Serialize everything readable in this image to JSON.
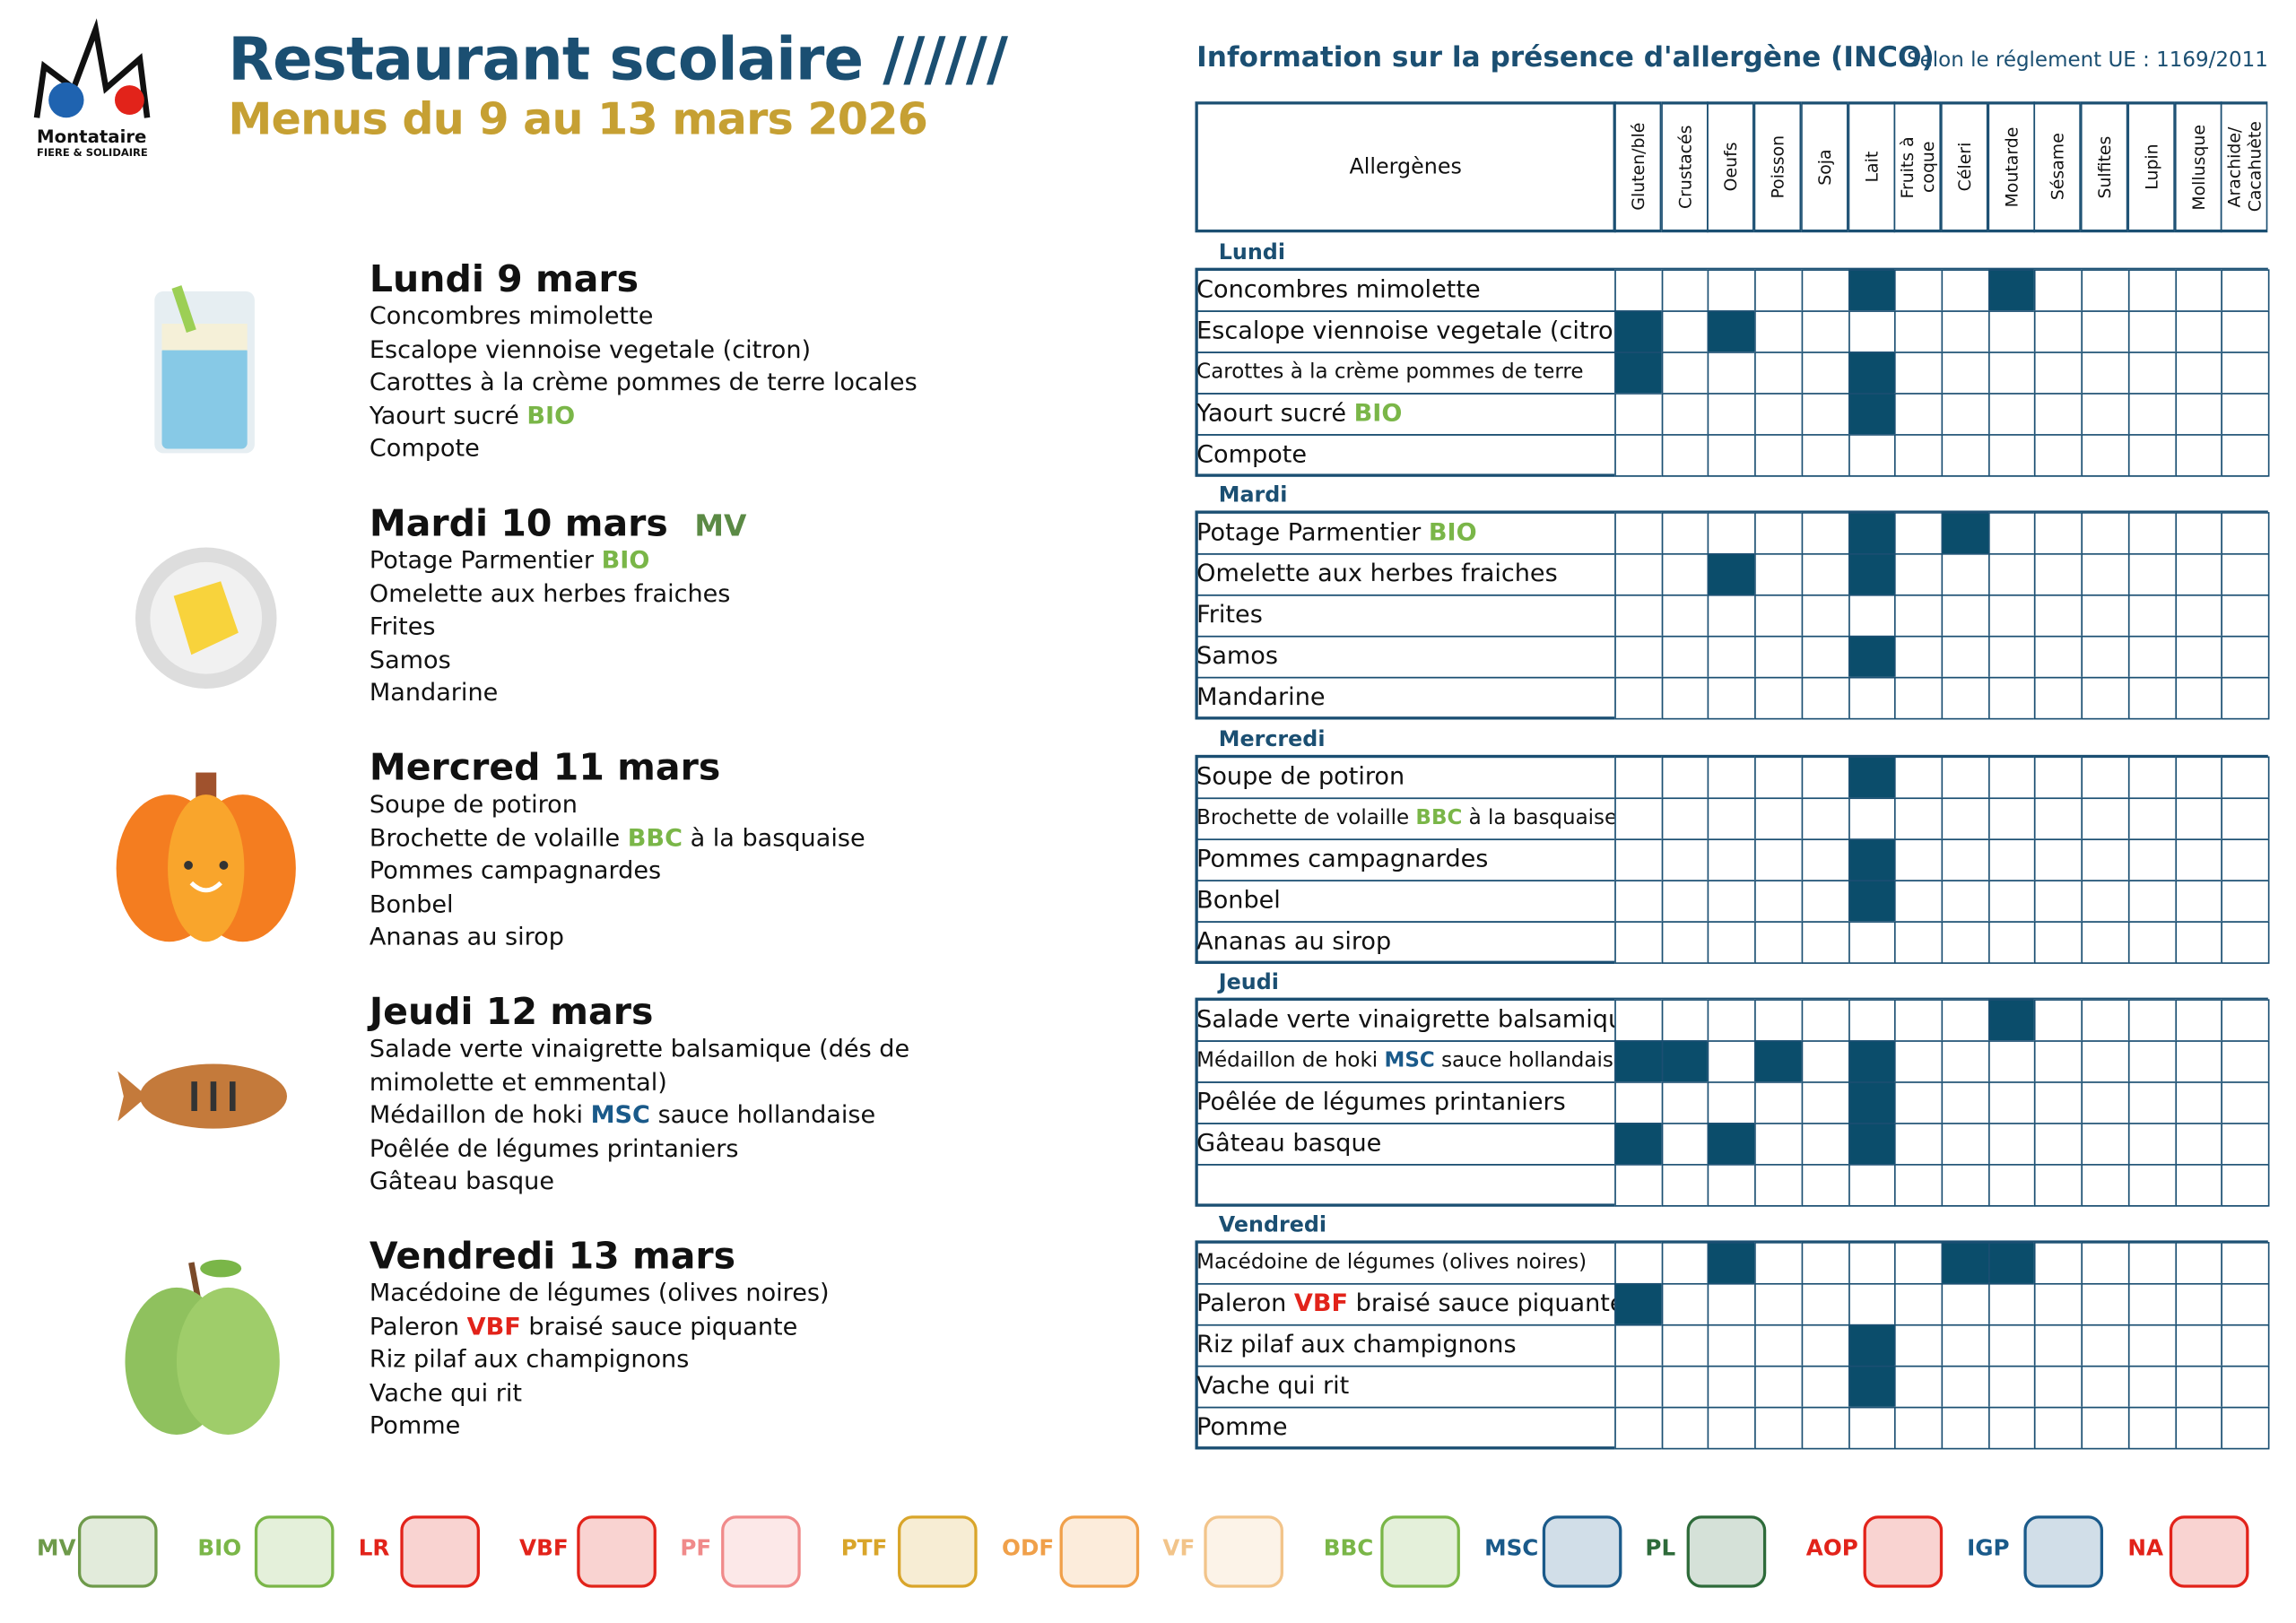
{
  "header": {
    "city": "Montataire",
    "city_tagline": "FIERE & SOLIDAIRE",
    "title": "Restaurant scolaire //////",
    "subtitle": "Menus du 9 au 13 mars 2026"
  },
  "menu": {
    "days": [
      {
        "title": "Lundi 9 mars",
        "dishes": [
          {
            "parts": [
              {
                "text": "Concombres mimolette"
              }
            ]
          },
          {
            "parts": [
              {
                "text": "Escalope viennoise vegetale (citron)"
              }
            ]
          },
          {
            "parts": [
              {
                "text": "Carottes à la crème pommes de terre locales"
              }
            ]
          },
          {
            "parts": [
              {
                "text": "Yaourt sucré"
              },
              {
                "text": "BIO",
                "color": "#7ab648"
              }
            ]
          },
          {
            "parts": [
              {
                "text": "Compote"
              }
            ]
          }
        ]
      },
      {
        "title": "Mardi 10 mars",
        "tag": "MV",
        "tag_color": "#5b8a45",
        "dishes": [
          {
            "parts": [
              {
                "text": "Potage Parmentier"
              },
              {
                "text": "BIO",
                "color": "#7ab648"
              }
            ]
          },
          {
            "parts": [
              {
                "text": "Omelette aux herbes fraiches"
              }
            ]
          },
          {
            "parts": [
              {
                "text": "Frites"
              }
            ]
          },
          {
            "parts": [
              {
                "text": "Samos"
              }
            ]
          },
          {
            "parts": [
              {
                "text": "Mandarine"
              }
            ]
          }
        ]
      },
      {
        "title": "Mercred 11 mars",
        "dishes": [
          {
            "parts": [
              {
                "text": "Soupe de potiron"
              }
            ]
          },
          {
            "parts": [
              {
                "text": "Brochette de volaille"
              },
              {
                "text": "BBC",
                "color": "#7ab648"
              },
              {
                "text": "à la basquaise"
              }
            ]
          },
          {
            "parts": [
              {
                "text": "Pommes campagnardes"
              }
            ]
          },
          {
            "parts": [
              {
                "text": "Bonbel"
              }
            ]
          },
          {
            "parts": [
              {
                "text": "Ananas au sirop"
              }
            ]
          }
        ]
      },
      {
        "title": "Jeudi 12 mars",
        "dishes": [
          {
            "parts": [
              {
                "text": "Salade verte vinaigrette balsamique (dés de mimolette et emmental)"
              }
            ]
          },
          {
            "parts": [
              {
                "text": "Médaillon de hoki"
              },
              {
                "text": "MSC",
                "color": "#1a5a8a"
              },
              {
                "text": "sauce hollandaise"
              }
            ]
          },
          {
            "parts": [
              {
                "text": "Poêlée de légumes printaniers"
              }
            ]
          },
          {
            "parts": [
              {
                "text": "Gâteau basque"
              }
            ]
          }
        ]
      },
      {
        "title": "Vendredi 13 mars",
        "dishes": [
          {
            "parts": [
              {
                "text": "Macédoine de légumes (olives noires)"
              }
            ]
          },
          {
            "parts": [
              {
                "text": "Paleron"
              },
              {
                "text": "VBF",
                "color": "#e2231a"
              },
              {
                "text": "braisé sauce piquante"
              }
            ]
          },
          {
            "parts": [
              {
                "text": "Riz pilaf aux champignons"
              }
            ]
          },
          {
            "parts": [
              {
                "text": "Vache qui rit"
              }
            ]
          },
          {
            "parts": [
              {
                "text": "Pomme"
              }
            ]
          }
        ]
      }
    ]
  },
  "allergen_table": {
    "title": "Information sur la présence d'allergène (INCO)",
    "regulation": "Selon le réglement UE : 1169/2011",
    "header": "Allergènes",
    "allergens": [
      "Gluten/blé",
      "Crustacés",
      "Oeufs",
      "Poisson",
      "Soja",
      "Lait",
      "Fruits à coque",
      "Céleri",
      "Moutarde",
      "Sésame",
      "Sulfites",
      "Lupin",
      "Mollusque",
      "Arachide/ Cacahuète"
    ],
    "fill_color": "#0b4d6b",
    "sections": [
      {
        "day": "Lundi",
        "rows": [
          {
            "parts": [
              {
                "text": "Concombres mimolette"
              }
            ],
            "flags": [
              false,
              false,
              false,
              false,
              false,
              true,
              false,
              false,
              true,
              false,
              false,
              false,
              false,
              false
            ]
          },
          {
            "parts": [
              {
                "text": "Escalope viennoise vegetale (citron)"
              }
            ],
            "flags": [
              true,
              false,
              true,
              false,
              false,
              false,
              false,
              false,
              false,
              false,
              false,
              false,
              false,
              false
            ]
          },
          {
            "parts": [
              {
                "text": "Carottes à la crème pommes de terre"
              }
            ],
            "small": true,
            "flags": [
              true,
              false,
              false,
              false,
              false,
              true,
              false,
              false,
              false,
              false,
              false,
              false,
              false,
              false
            ]
          },
          {
            "parts": [
              {
                "text": "Yaourt sucré"
              },
              {
                "text": "BIO",
                "color": "#7ab648"
              }
            ],
            "flags": [
              false,
              false,
              false,
              false,
              false,
              true,
              false,
              false,
              false,
              false,
              false,
              false,
              false,
              false
            ]
          },
          {
            "parts": [
              {
                "text": "Compote"
              }
            ],
            "flags": [
              false,
              false,
              false,
              false,
              false,
              false,
              false,
              false,
              false,
              false,
              false,
              false,
              false,
              false
            ]
          }
        ]
      },
      {
        "day": "Mardi",
        "rows": [
          {
            "parts": [
              {
                "text": "Potage Parmentier"
              },
              {
                "text": "BIO",
                "color": "#7ab648"
              }
            ],
            "flags": [
              false,
              false,
              false,
              false,
              false,
              true,
              false,
              true,
              false,
              false,
              false,
              false,
              false,
              false
            ]
          },
          {
            "parts": [
              {
                "text": "Omelette aux herbes fraiches"
              }
            ],
            "flags": [
              false,
              false,
              true,
              false,
              false,
              true,
              false,
              false,
              false,
              false,
              false,
              false,
              false,
              false
            ]
          },
          {
            "parts": [
              {
                "text": "Frites"
              }
            ],
            "flags": [
              false,
              false,
              false,
              false,
              false,
              false,
              false,
              false,
              false,
              false,
              false,
              false,
              false,
              false
            ]
          },
          {
            "parts": [
              {
                "text": "Samos"
              }
            ],
            "flags": [
              false,
              false,
              false,
              false,
              false,
              true,
              false,
              false,
              false,
              false,
              false,
              false,
              false,
              false
            ]
          },
          {
            "parts": [
              {
                "text": "Mandarine"
              }
            ],
            "flags": [
              false,
              false,
              false,
              false,
              false,
              false,
              false,
              false,
              false,
              false,
              false,
              false,
              false,
              false
            ]
          }
        ]
      },
      {
        "day": "Mercredi",
        "rows": [
          {
            "parts": [
              {
                "text": "Soupe de potiron"
              }
            ],
            "flags": [
              false,
              false,
              false,
              false,
              false,
              true,
              false,
              false,
              false,
              false,
              false,
              false,
              false,
              false
            ]
          },
          {
            "parts": [
              {
                "text": "Brochette de volaille"
              },
              {
                "text": "BBC",
                "color": "#7ab648"
              },
              {
                "text": "à la basquaise"
              }
            ],
            "small": true,
            "flags": [
              false,
              false,
              false,
              false,
              false,
              false,
              false,
              false,
              false,
              false,
              false,
              false,
              false,
              false
            ]
          },
          {
            "parts": [
              {
                "text": "Pommes campagnardes"
              }
            ],
            "flags": [
              false,
              false,
              false,
              false,
              false,
              true,
              false,
              false,
              false,
              false,
              false,
              false,
              false,
              false
            ]
          },
          {
            "parts": [
              {
                "text": "Bonbel"
              }
            ],
            "flags": [
              false,
              false,
              false,
              false,
              false,
              true,
              false,
              false,
              false,
              false,
              false,
              false,
              false,
              false
            ]
          },
          {
            "parts": [
              {
                "text": "Ananas au sirop"
              }
            ],
            "flags": [
              false,
              false,
              false,
              false,
              false,
              false,
              false,
              false,
              false,
              false,
              false,
              false,
              false,
              false
            ]
          }
        ]
      },
      {
        "day": "Jeudi",
        "rows": [
          {
            "parts": [
              {
                "text": "Salade verte vinaigrette balsamique"
              }
            ],
            "flags": [
              false,
              false,
              false,
              false,
              false,
              false,
              false,
              false,
              true,
              false,
              false,
              false,
              false,
              false
            ]
          },
          {
            "parts": [
              {
                "text": "Médaillon de hoki"
              },
              {
                "text": "MSC",
                "color": "#1a5a8a"
              },
              {
                "text": "sauce hollandaise"
              }
            ],
            "small": true,
            "flags": [
              true,
              true,
              false,
              true,
              false,
              true,
              false,
              false,
              false,
              false,
              false,
              false,
              false,
              false
            ]
          },
          {
            "parts": [
              {
                "text": "Poêlée de légumes printaniers"
              }
            ],
            "flags": [
              false,
              false,
              false,
              false,
              false,
              true,
              false,
              false,
              false,
              false,
              false,
              false,
              false,
              false
            ]
          },
          {
            "parts": [
              {
                "text": "Gâteau basque"
              }
            ],
            "flags": [
              true,
              false,
              true,
              false,
              false,
              true,
              false,
              false,
              false,
              false,
              false,
              false,
              false,
              false
            ]
          },
          {
            "parts": null,
            "flags": [
              false,
              false,
              false,
              false,
              false,
              false,
              false,
              false,
              false,
              false,
              false,
              false,
              false,
              false
            ]
          }
        ]
      },
      {
        "day": "Vendredi",
        "rows": [
          {
            "parts": [
              {
                "text": "Macédoine de légumes (olives noires)"
              }
            ],
            "small": true,
            "flags": [
              false,
              false,
              true,
              false,
              false,
              false,
              false,
              true,
              true,
              false,
              false,
              false,
              false,
              false
            ]
          },
          {
            "parts": [
              {
                "text": "Paleron"
              },
              {
                "text": "VBF",
                "color": "#e2231a"
              },
              {
                "text": "braisé sauce piquante"
              }
            ],
            "flags": [
              true,
              false,
              false,
              false,
              false,
              false,
              false,
              false,
              false,
              false,
              false,
              false,
              false,
              false
            ]
          },
          {
            "parts": [
              {
                "text": "Riz pilaf aux champignons"
              }
            ],
            "flags": [
              false,
              false,
              false,
              false,
              false,
              true,
              false,
              false,
              false,
              false,
              false,
              false,
              false,
              false
            ]
          },
          {
            "parts": [
              {
                "text": "Vache qui rit"
              }
            ],
            "flags": [
              false,
              false,
              false,
              false,
              false,
              true,
              false,
              false,
              false,
              false,
              false,
              false,
              false,
              false
            ]
          },
          {
            "parts": [
              {
                "text": "Pomme"
              }
            ],
            "flags": [
              false,
              false,
              false,
              false,
              false,
              false,
              false,
              false,
              false,
              false,
              false,
              false,
              false,
              false
            ]
          }
        ]
      }
    ]
  },
  "legend": [
    {
      "label": "MV",
      "color": "#6e9a4a"
    },
    {
      "label": "BIO",
      "color": "#7ab648"
    },
    {
      "label": "LR",
      "color": "#e2231a"
    },
    {
      "label": "VBF",
      "color": "#e2231a"
    },
    {
      "label": "PF",
      "color": "#f08a8a"
    },
    {
      "label": "PTF",
      "color": "#d9a52a"
    },
    {
      "label": "ODF",
      "color": "#f0a04a"
    },
    {
      "label": "VF",
      "color": "#f2c48a"
    },
    {
      "label": "BBC",
      "color": "#7ab648"
    },
    {
      "label": "MSC",
      "color": "#1a5a8a"
    },
    {
      "label": "PL",
      "color": "#2e6b3a"
    },
    {
      "label": "AOP",
      "color": "#e2231a"
    },
    {
      "label": "IGP",
      "color": "#1a5a8a"
    },
    {
      "label": "NA",
      "color": "#e2231a"
    }
  ]
}
